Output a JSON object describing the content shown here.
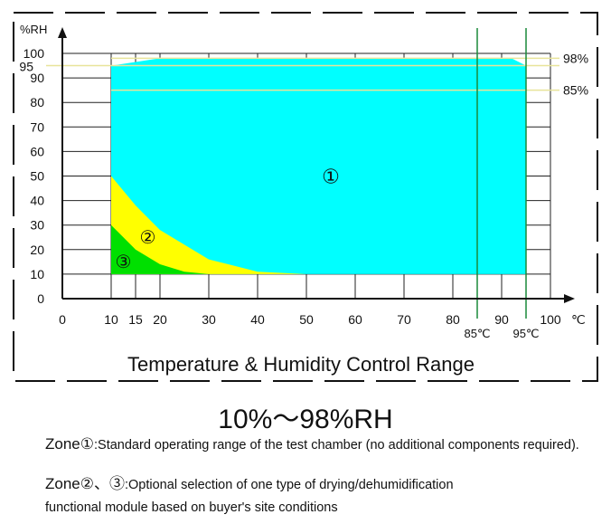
{
  "chart_data": {
    "type": "area",
    "title": "Temperature & Humidity Control Range",
    "ylabel": "%RH",
    "xunit": "℃",
    "xlim": [
      0,
      100
    ],
    "ylim": [
      0,
      100
    ],
    "x_ticks": [
      "0",
      "10",
      "15",
      "20",
      "30",
      "40",
      "50",
      "60",
      "70",
      "80",
      "90",
      "100"
    ],
    "y_ticks": [
      "0",
      "10",
      "20",
      "30",
      "40",
      "50",
      "60",
      "70",
      "80",
      "90",
      "100"
    ],
    "extra_y_tick": "95",
    "grid": true,
    "zones": [
      {
        "label": "①",
        "color": "#00ffff",
        "polygon": [
          [
            10,
            10
          ],
          [
            10,
            95
          ],
          [
            20,
            98
          ],
          [
            92,
            98
          ],
          [
            95,
            95
          ],
          [
            95,
            10
          ]
        ]
      },
      {
        "label": "②",
        "color": "#ffff00",
        "boundary_top": [
          [
            10,
            50
          ],
          [
            15,
            38
          ],
          [
            20,
            28
          ],
          [
            30,
            16
          ],
          [
            40,
            11
          ],
          [
            50,
            10
          ]
        ]
      },
      {
        "label": "③",
        "color": "#00e000",
        "boundary_top": [
          [
            10,
            30
          ],
          [
            15,
            20
          ],
          [
            20,
            14
          ],
          [
            25,
            11
          ],
          [
            30,
            10
          ]
        ]
      }
    ],
    "reference_lines": {
      "horizontal": [
        {
          "y": 98,
          "label": "98%"
        },
        {
          "y": 95,
          "label": ""
        },
        {
          "y": 85,
          "label": "85%"
        }
      ],
      "vertical": [
        {
          "x": 85,
          "label": "85℃"
        },
        {
          "x": 95,
          "label": "95℃"
        }
      ]
    }
  },
  "range_text": "10%～98%RH",
  "notes": {
    "zone1_word": "Zone",
    "zone1_mark": "①",
    "zone1_text": ":Standard operating range of the test chamber (no additional components required).",
    "zone23_word": "Zone",
    "zone23_mark": "②、③",
    "zone23_text": ":Optional selection of one type of drying/dehumidification",
    "zone23_text2": "functional module based on buyer's site conditions"
  },
  "colors": {
    "zone1": "#00ffff",
    "zone2": "#ffff00",
    "zone3": "#00e000",
    "ref_h": "#e8e49a",
    "ref_v": "#1a8a3a"
  }
}
